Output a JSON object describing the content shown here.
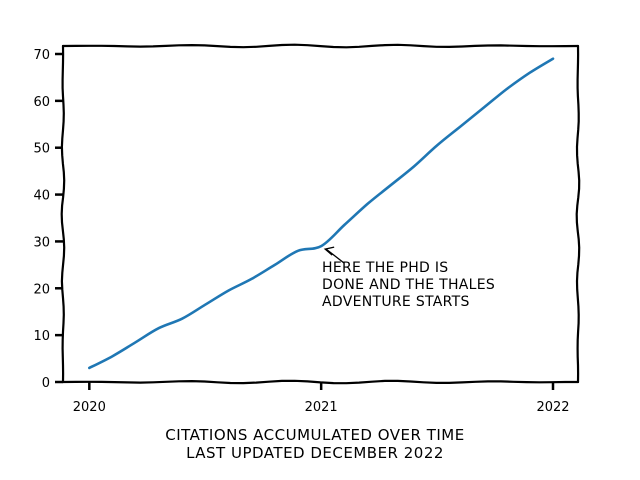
{
  "chart_data": {
    "type": "line",
    "style": "xkcd",
    "xlabel_lines": [
      "CITATIONS ACCUMULATED OVER TIME",
      "LAST UPDATED DECEMBER 2022"
    ],
    "ylabel": "",
    "xlim": [
      2019.99,
      2022.0
    ],
    "ylim": [
      0,
      70
    ],
    "x_ticks": [
      2020,
      2021,
      2022
    ],
    "x_tick_labels": [
      "2020",
      "2021",
      "2022"
    ],
    "y_ticks": [
      0,
      10,
      20,
      30,
      40,
      50,
      60,
      70
    ],
    "y_tick_labels": [
      "0",
      "10",
      "20",
      "30",
      "40",
      "50",
      "60",
      "70"
    ],
    "grid": false,
    "series": [
      {
        "color": "#1f77b4",
        "x": [
          2020.0,
          2020.1,
          2020.2,
          2020.3,
          2020.4,
          2020.5,
          2020.6,
          2020.7,
          2020.8,
          2020.9,
          2021.0,
          2021.1,
          2021.2,
          2021.3,
          2021.4,
          2021.5,
          2021.6,
          2021.7,
          2021.8,
          2021.9,
          2022.0
        ],
        "y": [
          3,
          5.5,
          8.5,
          11.5,
          13.5,
          16.5,
          19.5,
          22,
          25,
          28,
          29,
          33.5,
          38,
          42,
          46,
          50.5,
          54.5,
          58.5,
          62.5,
          66,
          69
        ]
      }
    ],
    "annotation": {
      "lines": [
        "HERE THE PHD IS",
        "DONE AND THE THALES",
        "ADVENTURE STARTS"
      ],
      "point": {
        "x": 2021.0,
        "y": 29
      }
    }
  }
}
